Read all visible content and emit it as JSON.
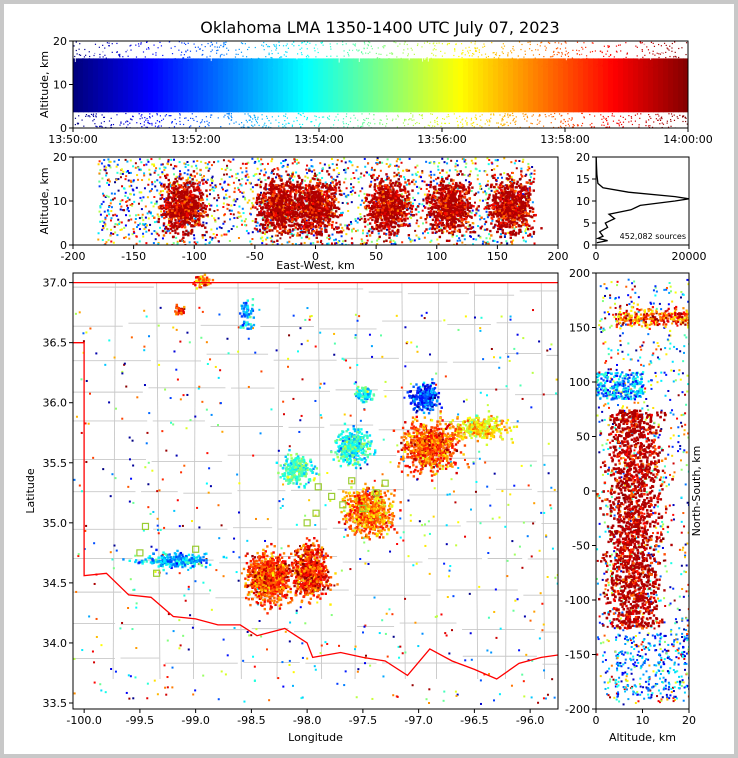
{
  "title": "Oklahoma LMA 1350-1400 UTC July 07, 2023",
  "colors": {
    "jet": [
      "#00007f",
      "#0000ff",
      "#007fff",
      "#00ffff",
      "#7fff7f",
      "#ffff00",
      "#ff7f00",
      "#ff0000",
      "#7f0000"
    ],
    "county_lines": "#c8c8c8",
    "state_border": "#ff0000",
    "station_marker": "#9acd32"
  },
  "chart_data": [
    {
      "name": "time-altitude",
      "type": "scatter",
      "ylabel": "Altitude, km",
      "ylim": [
        0,
        20
      ],
      "yticks": [
        "0",
        "10",
        "20"
      ],
      "xlim": [
        "13:50:00",
        "14:00:00"
      ],
      "xticks": [
        "13:50:00",
        "13:52:00",
        "13:54:00",
        "13:56:00",
        "13:58:00",
        "14:00:00"
      ],
      "color_by": "time"
    },
    {
      "name": "eastwest-altitude",
      "type": "scatter",
      "xlabel": "East-West, km",
      "ylabel": "Altitude, km",
      "xlim": [
        -200,
        200
      ],
      "ylim": [
        0,
        20
      ],
      "xticks": [
        "-200",
        "-150",
        "-100",
        "-50",
        "0",
        "50",
        "100",
        "150",
        "200"
      ],
      "yticks": [
        "0",
        "10",
        "20"
      ],
      "clusters_x_km": [
        -110,
        -30,
        0,
        60,
        110,
        160
      ]
    },
    {
      "name": "altitude-histogram",
      "type": "line",
      "annotation": "452,082 sources",
      "xlim": [
        0,
        20000
      ],
      "ylim": [
        0,
        20
      ],
      "xticks": [
        "0",
        "20000"
      ],
      "yticks": [
        "0",
        "5",
        "10",
        "15",
        "20"
      ],
      "profile": [
        [
          0.5,
          200
        ],
        [
          1,
          2500
        ],
        [
          1.5,
          400
        ],
        [
          2,
          1500
        ],
        [
          3,
          800
        ],
        [
          4,
          2500
        ],
        [
          5,
          2000
        ],
        [
          6,
          4000
        ],
        [
          7,
          2800
        ],
        [
          8,
          7500
        ],
        [
          9,
          9500
        ],
        [
          10,
          17000
        ],
        [
          10.5,
          20000
        ],
        [
          11,
          17000
        ],
        [
          12,
          7000
        ],
        [
          13,
          1500
        ],
        [
          14,
          400
        ],
        [
          16,
          200
        ],
        [
          18,
          100
        ],
        [
          20,
          50
        ]
      ]
    },
    {
      "name": "plan-view",
      "type": "scatter",
      "xlabel": "Longitude",
      "ylabel": "Latitude",
      "xlim": [
        -100.1,
        -95.75
      ],
      "ylim": [
        33.45,
        37.08
      ],
      "xticks": [
        "-100.0",
        "-99.5",
        "-99.0",
        "-98.5",
        "-98.0",
        "-97.5",
        "-97.0",
        "-96.5",
        "-96.0"
      ],
      "yticks": [
        "33.5",
        "34.0",
        "34.5",
        "35.0",
        "35.5",
        "36.0",
        "36.5",
        "37.0"
      ],
      "stations": [
        [
          -99.45,
          34.97
        ],
        [
          -99.5,
          34.75
        ],
        [
          -99.35,
          34.58
        ],
        [
          -99.0,
          34.78
        ],
        [
          -97.9,
          35.3
        ],
        [
          -97.78,
          35.22
        ],
        [
          -97.68,
          35.15
        ],
        [
          -97.5,
          35.12
        ],
        [
          -97.38,
          35.25
        ],
        [
          -97.6,
          35.35
        ],
        [
          -97.92,
          35.08
        ],
        [
          -98.0,
          35.0
        ],
        [
          -97.3,
          35.33
        ]
      ]
    },
    {
      "name": "altitude-northsouth",
      "type": "scatter",
      "xlabel": "Altitude, km",
      "ylabel": "North-South, km",
      "xlim": [
        0,
        20
      ],
      "ylim": [
        -200,
        200
      ],
      "xticks": [
        "0",
        "10",
        "20"
      ],
      "yticks": [
        "-200",
        "-150",
        "-100",
        "-50",
        "0",
        "50",
        "100",
        "150",
        "200"
      ]
    }
  ]
}
